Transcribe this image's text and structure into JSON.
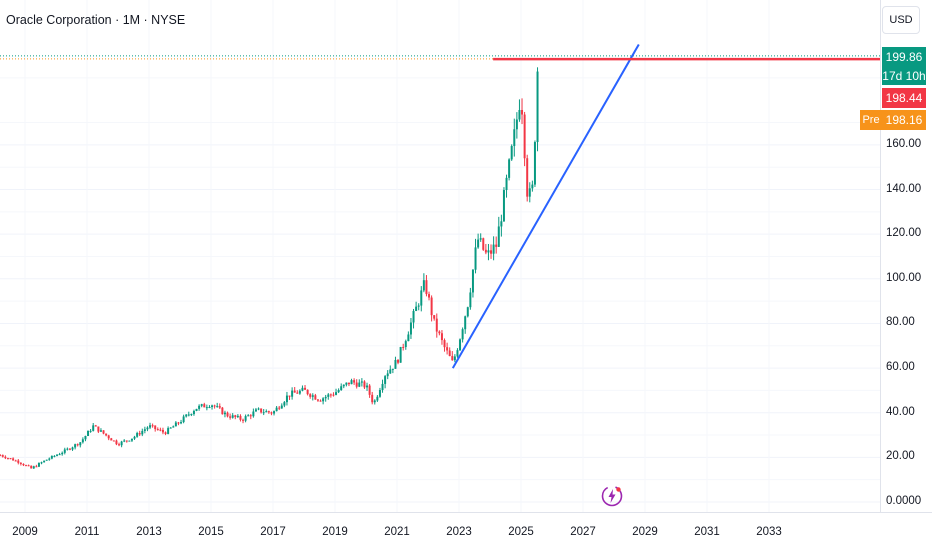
{
  "title": "Oracle Corporation · 1M · NYSE",
  "currency": "USD",
  "price_tags": {
    "last": "199.86",
    "countdown": "17d 10h",
    "red": "198.44",
    "pre_label": "Pre",
    "pre": "198.16"
  },
  "colors": {
    "up": "#089981",
    "down": "#f23645",
    "trendline": "#2962ff",
    "resistance": "#f23645",
    "pre_market": "#f7931a"
  },
  "icons": {
    "ai": "lightning-sparkle-icon"
  },
  "chart_data": {
    "type": "candlestick",
    "title": "Oracle Corporation · 1M · NYSE",
    "xlabel": "",
    "ylabel": "",
    "x_ticks": [
      "2009",
      "2011",
      "2013",
      "2015",
      "2017",
      "2019",
      "2021",
      "2023",
      "2025",
      "2027",
      "2029",
      "2031",
      "2033"
    ],
    "y_ticks": [
      "0.0000",
      "20.00",
      "40.00",
      "60.00",
      "80.00",
      "100.00",
      "120.00",
      "140.00",
      "160.00"
    ],
    "ylim": [
      -2,
      225
    ],
    "xlim": [
      2008.2,
      2033.7
    ],
    "grid": true,
    "price_path": [
      [
        2008.2,
        21
      ],
      [
        2008.8,
        18
      ],
      [
        2009.2,
        15
      ],
      [
        2009.7,
        19
      ],
      [
        2010.3,
        23
      ],
      [
        2010.8,
        27
      ],
      [
        2011.2,
        34
      ],
      [
        2011.6,
        30
      ],
      [
        2012.0,
        26
      ],
      [
        2012.5,
        29
      ],
      [
        2013.0,
        34
      ],
      [
        2013.5,
        31
      ],
      [
        2014.0,
        36
      ],
      [
        2014.5,
        42
      ],
      [
        2015.0,
        44
      ],
      [
        2015.5,
        39
      ],
      [
        2016.0,
        37
      ],
      [
        2016.5,
        41
      ],
      [
        2017.0,
        40
      ],
      [
        2017.5,
        48
      ],
      [
        2018.0,
        50
      ],
      [
        2018.5,
        46
      ],
      [
        2019.0,
        49
      ],
      [
        2019.5,
        54
      ],
      [
        2020.0,
        52
      ],
      [
        2020.25,
        44
      ],
      [
        2020.6,
        57
      ],
      [
        2021.0,
        63
      ],
      [
        2021.5,
        82
      ],
      [
        2021.9,
        98
      ],
      [
        2022.2,
        80
      ],
      [
        2022.5,
        70
      ],
      [
        2022.8,
        62
      ],
      [
        2023.0,
        72
      ],
      [
        2023.3,
        90
      ],
      [
        2023.6,
        118
      ],
      [
        2023.9,
        110
      ],
      [
        2024.2,
        115
      ],
      [
        2024.5,
        140
      ],
      [
        2024.8,
        165
      ],
      [
        2025.0,
        185
      ],
      [
        2025.2,
        140
      ],
      [
        2025.35,
        135
      ],
      [
        2025.45,
        165
      ],
      [
        2025.55,
        199.86
      ]
    ],
    "annotations": [
      {
        "type": "trendline",
        "from": [
          2022.8,
          60
        ],
        "to": [
          2028.8,
          205
        ]
      },
      {
        "type": "horizontal_line",
        "y": 198.44,
        "x_start": 2024.1
      }
    ],
    "last_price": 199.86,
    "pre_market_price": 198.16
  }
}
